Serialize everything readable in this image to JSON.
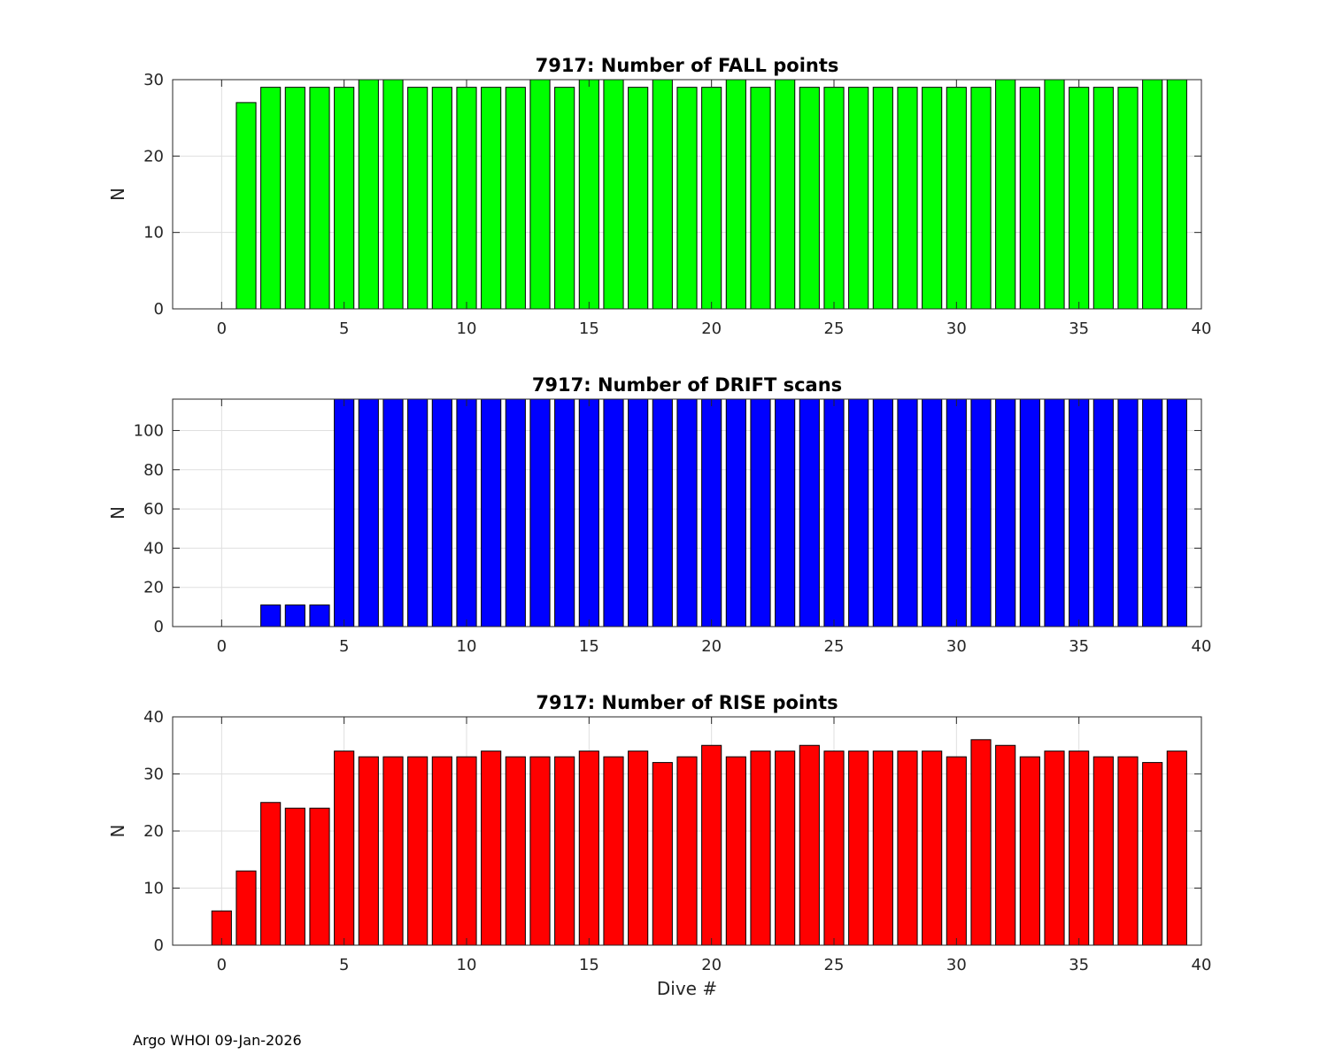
{
  "footer": "Argo WHOI 09-Jan-2026",
  "chart_data": [
    {
      "type": "bar",
      "title": "7917: Number of FALL points",
      "xlabel": "",
      "ylabel": "N",
      "xlim": [
        -2,
        40
      ],
      "ylim": [
        0,
        30
      ],
      "xticks": [
        0,
        5,
        10,
        15,
        20,
        25,
        30,
        35,
        40
      ],
      "yticks": [
        0,
        10,
        20,
        30
      ],
      "grid": true,
      "color": "#00ff00",
      "x": [
        1,
        2,
        3,
        4,
        5,
        6,
        7,
        8,
        9,
        10,
        11,
        12,
        13,
        14,
        15,
        16,
        17,
        18,
        19,
        20,
        21,
        22,
        23,
        24,
        25,
        26,
        27,
        28,
        29,
        30,
        31,
        32,
        33,
        34,
        35,
        36,
        37,
        38,
        39
      ],
      "values": [
        27,
        29,
        29,
        29,
        29,
        30,
        30,
        29,
        29,
        29,
        29,
        29,
        30,
        29,
        30,
        30,
        29,
        30,
        29,
        29,
        30,
        29,
        30,
        29,
        29,
        29,
        29,
        29,
        29,
        29,
        29,
        30,
        29,
        30,
        29,
        29,
        29,
        30,
        30
      ]
    },
    {
      "type": "bar",
      "title": "7917: Number of DRIFT scans",
      "xlabel": "",
      "ylabel": "N",
      "xlim": [
        -2,
        40
      ],
      "ylim": [
        0,
        116
      ],
      "xticks": [
        0,
        5,
        10,
        15,
        20,
        25,
        30,
        35,
        40
      ],
      "yticks": [
        0,
        20,
        40,
        60,
        80,
        100
      ],
      "grid": true,
      "color": "#0000ff",
      "x": [
        -1,
        0,
        1,
        2,
        3,
        4,
        5,
        6,
        7,
        8,
        9,
        10,
        11,
        12,
        13,
        14,
        15,
        16,
        17,
        18,
        19,
        20,
        21,
        22,
        23,
        24,
        25,
        26,
        27,
        28,
        29,
        30,
        31,
        32,
        33,
        34,
        35,
        36,
        37,
        38,
        39
      ],
      "values": [
        0,
        0,
        0,
        11,
        11,
        11,
        116,
        116,
        116,
        116,
        116,
        116,
        116,
        116,
        116,
        116,
        116,
        116,
        116,
        116,
        116,
        116,
        116,
        116,
        116,
        116,
        116,
        116,
        116,
        116,
        116,
        116,
        116,
        116,
        116,
        116,
        116,
        116,
        116,
        116,
        116
      ]
    },
    {
      "type": "bar",
      "title": "7917: Number of RISE points",
      "xlabel": "Dive #",
      "ylabel": "N",
      "xlim": [
        -2,
        40
      ],
      "ylim": [
        0,
        40
      ],
      "xticks": [
        0,
        5,
        10,
        15,
        20,
        25,
        30,
        35,
        40
      ],
      "yticks": [
        0,
        10,
        20,
        30,
        40
      ],
      "grid": true,
      "color": "#ff0000",
      "x": [
        0,
        1,
        2,
        3,
        4,
        5,
        6,
        7,
        8,
        9,
        10,
        11,
        12,
        13,
        14,
        15,
        16,
        17,
        18,
        19,
        20,
        21,
        22,
        23,
        24,
        25,
        26,
        27,
        28,
        29,
        30,
        31,
        32,
        33,
        34,
        35,
        36,
        37,
        38,
        39
      ],
      "values": [
        6,
        13,
        25,
        24,
        24,
        34,
        33,
        33,
        33,
        33,
        33,
        34,
        33,
        33,
        33,
        34,
        33,
        34,
        32,
        33,
        35,
        33,
        34,
        34,
        35,
        34,
        34,
        34,
        34,
        34,
        33,
        36,
        35,
        33,
        34,
        34,
        33,
        33,
        32,
        34
      ]
    }
  ]
}
